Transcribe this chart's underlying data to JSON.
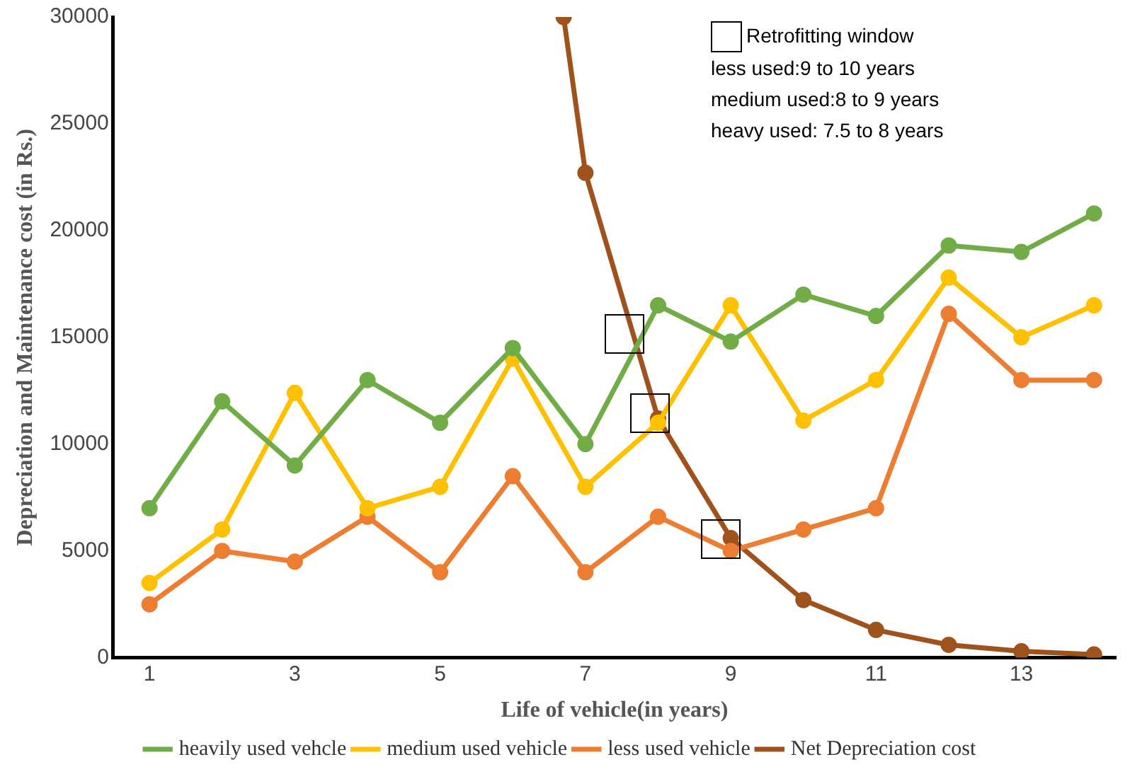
{
  "chart_data": {
    "type": "line",
    "xlabel": "Life of vehicle(in years)",
    "ylabel": "Depreciation and Maintenance cost (in Rs.)",
    "x": [
      1,
      2,
      3,
      4,
      5,
      6,
      7,
      8,
      9,
      10,
      11,
      12,
      13,
      14
    ],
    "xlim": [
      0.5,
      14.3
    ],
    "xticks": [
      1,
      3,
      5,
      7,
      9,
      11,
      13
    ],
    "ylim": [
      0,
      30000
    ],
    "yticks": [
      0,
      5000,
      10000,
      15000,
      20000,
      25000,
      30000
    ],
    "grid": false,
    "legend": "bottom",
    "marker": "circle",
    "line_style": "solid",
    "annotations": [
      "Retrofitting window",
      "less used:9 to 10 years",
      "medium used:8 to 9 years",
      "heavy used: 7.5 to 8 years"
    ],
    "series": [
      {
        "name": "Net Depreciation cost",
        "color": "#a0521d",
        "x": [
          6.7,
          7,
          8,
          9,
          10,
          11,
          12,
          13,
          14
        ],
        "values": [
          30000,
          22700,
          11200,
          5600,
          2700,
          1300,
          600,
          300,
          150
        ]
      },
      {
        "name": "less used vehicle",
        "color": "#ed7d31",
        "values": [
          2500,
          5000,
          4500,
          6600,
          4000,
          8500,
          4000,
          6600,
          5000,
          6000,
          7000,
          16100,
          13000,
          13000
        ]
      },
      {
        "name": "medium used vehicle",
        "color": "#ffc000",
        "values": [
          3500,
          6000,
          12400,
          7000,
          8000,
          14000,
          8000,
          11000,
          16500,
          11100,
          13000,
          17800,
          15000,
          16500
        ]
      },
      {
        "name": "heavily used vehcle",
        "color": "#70ad47",
        "values": [
          7000,
          12000,
          9000,
          13000,
          11000,
          14500,
          10000,
          16500,
          14800,
          17000,
          16000,
          19300,
          19000,
          20800
        ]
      }
    ]
  }
}
